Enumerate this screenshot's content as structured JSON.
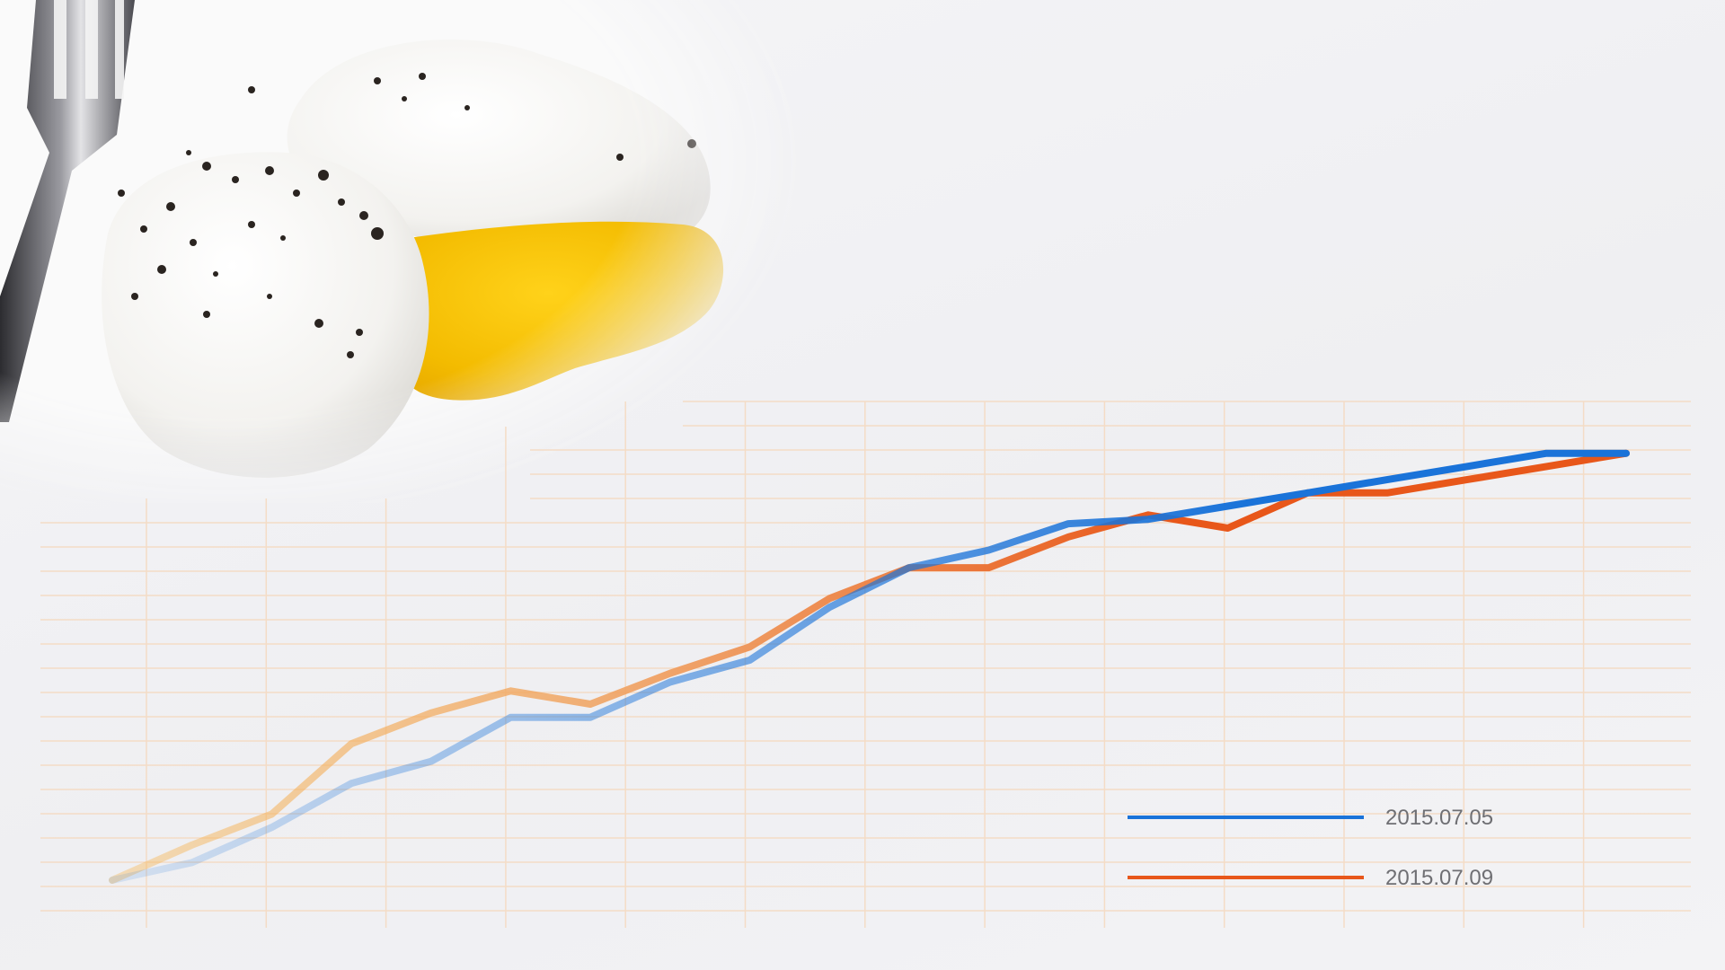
{
  "colors": {
    "background": "#f2f2f4",
    "grid": "#f4dcc6",
    "series_a": "#1a73d9",
    "series_b": "#e8571a",
    "legend_text": "#6f6f73"
  },
  "decoration": {
    "image_subject": "poached-eggs-with-fork"
  },
  "chart_data": {
    "type": "line",
    "title": "",
    "xlabel": "",
    "ylabel": "",
    "x": [
      1,
      2,
      3,
      4,
      5,
      6,
      7,
      8,
      9,
      10,
      11,
      12,
      13,
      14,
      15,
      16,
      17,
      18,
      19,
      20
    ],
    "xlim": [
      0,
      21
    ],
    "ylim": [
      0,
      100
    ],
    "grid": true,
    "legend_position": "bottom-right",
    "series": [
      {
        "name": "2015.07.05",
        "color": "#1a73d9",
        "values": [
          0,
          4,
          12,
          22,
          27,
          37,
          37,
          45,
          50,
          62,
          71,
          75,
          81,
          82,
          85,
          88,
          91,
          94,
          97,
          97
        ]
      },
      {
        "name": "2015.07.09",
        "color": "#e8571a",
        "values": [
          0,
          8,
          15,
          31,
          38,
          43,
          40,
          47,
          53,
          64,
          71,
          71,
          78,
          83,
          80,
          88,
          88,
          91,
          94,
          97
        ]
      }
    ]
  }
}
